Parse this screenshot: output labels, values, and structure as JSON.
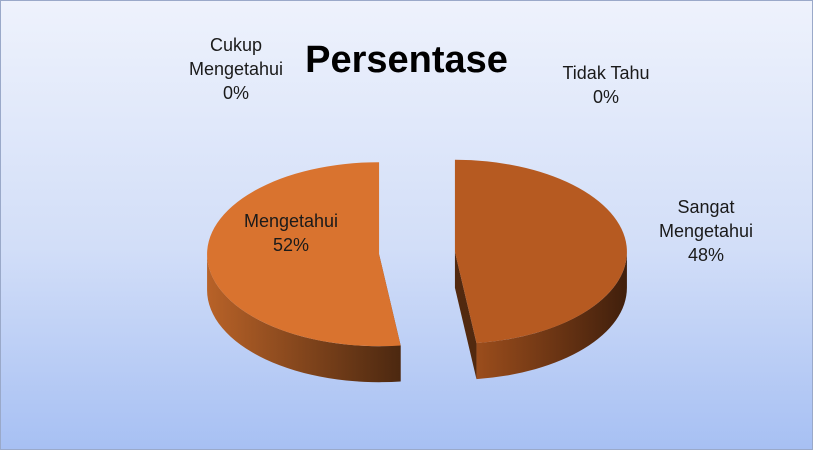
{
  "chart_data": {
    "type": "pie",
    "title": "Persentase",
    "categories": [
      "Sangat Mengetahui",
      "Mengetahui",
      "Cukup Mengetahui",
      "Tidak Tahu"
    ],
    "values": [
      48,
      52,
      0,
      0
    ],
    "value_labels": [
      "48%",
      "52%",
      "0%",
      "0%"
    ],
    "colors": [
      "#b65a21",
      "#d9732f",
      "#a5a5a5",
      "#ffc000"
    ]
  }
}
